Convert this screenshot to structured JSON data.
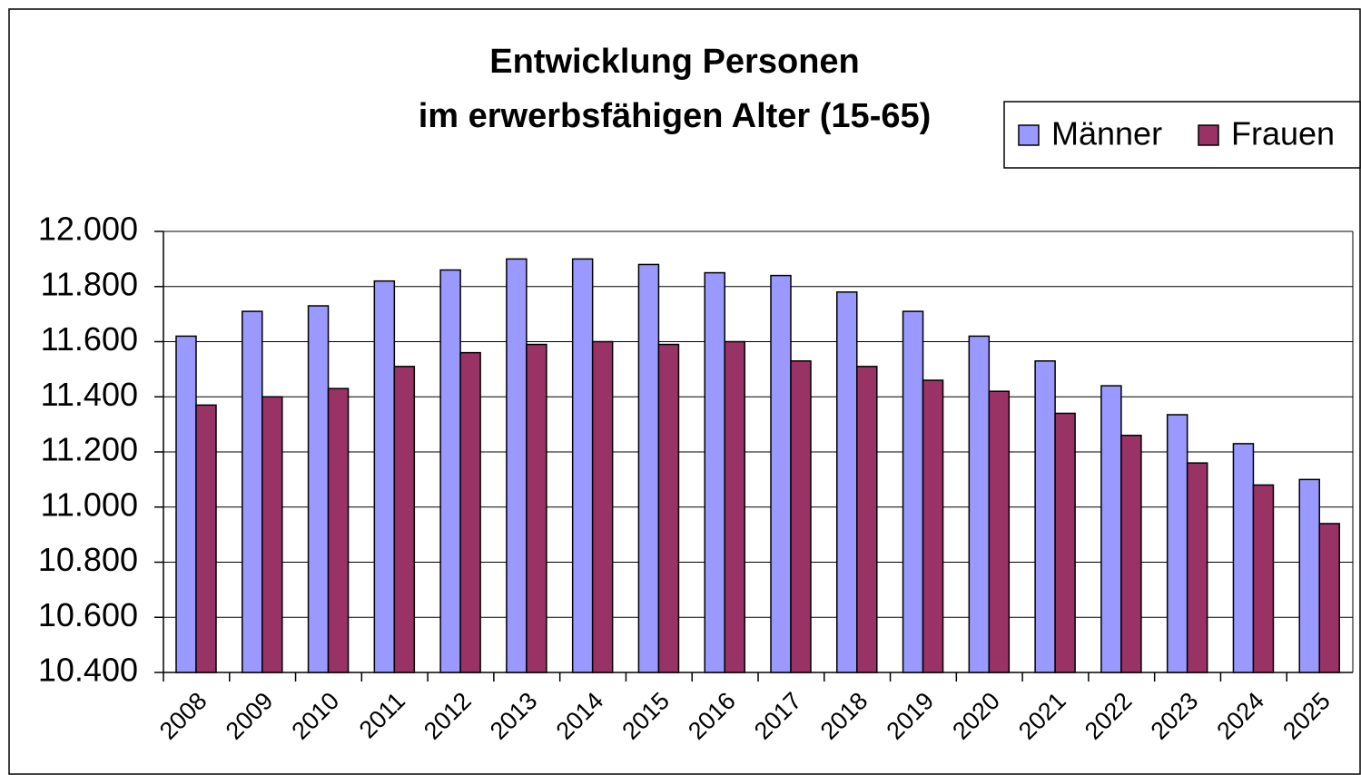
{
  "chart_data": {
    "type": "bar",
    "title": [
      "Entwicklung Personen",
      "im erwerbsfähigen Alter (15-65)"
    ],
    "categories": [
      "2008",
      "2009",
      "2010",
      "2011",
      "2012",
      "2013",
      "2014",
      "2015",
      "2016",
      "2017",
      "2018",
      "2019",
      "2020",
      "2021",
      "2022",
      "2023",
      "2024",
      "2025"
    ],
    "series": [
      {
        "name": "Männer",
        "color": "#9999ff",
        "values": [
          11620,
          11710,
          11730,
          11820,
          11860,
          11900,
          11900,
          11880,
          11850,
          11840,
          11780,
          11710,
          11620,
          11530,
          11440,
          11335,
          11230,
          11100
        ]
      },
      {
        "name": "Frauen",
        "color": "#993366",
        "values": [
          11370,
          11400,
          11430,
          11510,
          11560,
          11590,
          11600,
          11590,
          11600,
          11530,
          11510,
          11460,
          11420,
          11340,
          11260,
          11160,
          11080,
          10940
        ]
      }
    ],
    "ylim": [
      10400,
      12000
    ],
    "yticks": [
      {
        "value": 10400,
        "label": "10.400"
      },
      {
        "value": 10600,
        "label": "10.600"
      },
      {
        "value": 10800,
        "label": "10.800"
      },
      {
        "value": 11000,
        "label": "11.000"
      },
      {
        "value": 11200,
        "label": "11.200"
      },
      {
        "value": 11400,
        "label": "11.400"
      },
      {
        "value": 11600,
        "label": "11.600"
      },
      {
        "value": 11800,
        "label": "11.800"
      },
      {
        "value": 12000,
        "label": "12.000"
      }
    ],
    "grid": true,
    "legend": "top-right"
  }
}
